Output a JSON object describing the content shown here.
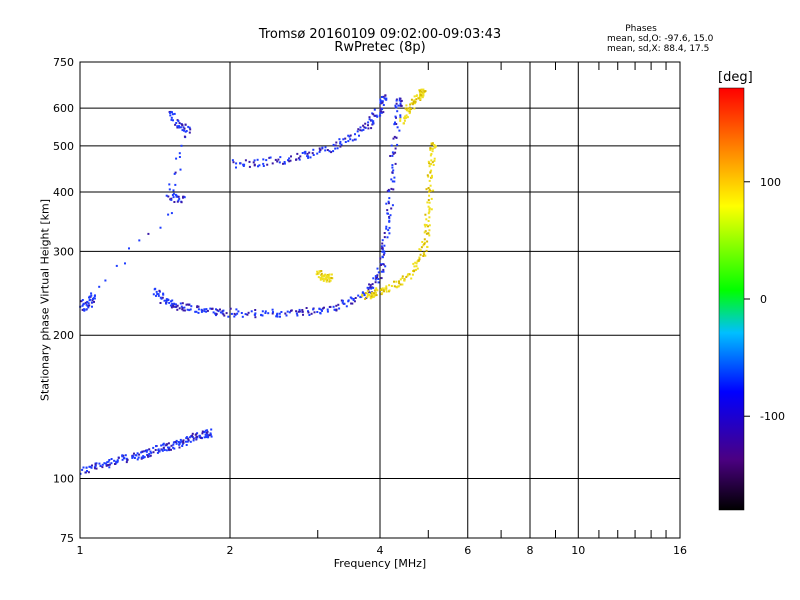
{
  "header": {
    "title_line1": "Tromsø 20160109 09:02:00-09:03:43",
    "title_line2": "RwPretec (8p)"
  },
  "phases": {
    "heading": "Phases",
    "line_o": "mean, sd,O: -97.6, 15.0",
    "line_x": "mean, sd,X:  88.4, 17.5"
  },
  "chart_data": {
    "type": "scatter",
    "xlabel": "Frequency [MHz]",
    "ylabel": "Stationary phase Virtual Height [km]",
    "x_scale": "log",
    "y_scale": "log",
    "xlim": [
      1,
      16
    ],
    "ylim": [
      75,
      750
    ],
    "x_ticks": [
      1,
      2,
      4,
      6,
      8,
      10,
      16
    ],
    "x_minor_ticks": [
      3,
      5,
      7,
      9,
      11,
      12,
      13,
      14,
      15
    ],
    "y_ticks": [
      75,
      100,
      200,
      300,
      400,
      500,
      600,
      750
    ],
    "grid": true,
    "colorbar": {
      "label": "[deg]",
      "range": [
        -180,
        180
      ],
      "ticks": [
        100,
        0,
        -100
      ],
      "colors": [
        "#000000",
        "#4b0082",
        "#0000ff",
        "#00bfff",
        "#00ff00",
        "#ffff00",
        "#ff8000",
        "#ff0000"
      ]
    },
    "colors": {
      "o_trace": "#1e3cff",
      "o_trace_low": "#3a1aa8",
      "x_trace": "#f0e020",
      "x_trace_low": "#d8b800",
      "noise": "#1e3cff"
    },
    "series": [
      {
        "mode": "O",
        "phase_mean": -97.6,
        "segments": [
          {
            "x": [
              1.0,
              1.05,
              1.1,
              1.15,
              1.2,
              1.25,
              1.3,
              1.35,
              1.4,
              1.45,
              1.5,
              1.55,
              1.6,
              1.65,
              1.7,
              1.75,
              1.8
            ],
            "y": [
              104,
              106,
              107,
              109,
              110,
              111,
              112,
              113,
              115,
              116,
              117,
              118,
              120,
              122,
              123,
              124,
              125
            ]
          },
          {
            "x": [
              1.4,
              1.45,
              1.5,
              1.55,
              1.6,
              1.7,
              1.8,
              1.9,
              2.0,
              2.2,
              2.4,
              2.6,
              2.8,
              3.0,
              3.2,
              3.4,
              3.6,
              3.8,
              3.9,
              4.0,
              4.05,
              4.1,
              4.15,
              4.2,
              4.25,
              4.3,
              4.35
            ],
            "y": [
              250,
              240,
              235,
              232,
              230,
              228,
              226,
              225,
              224,
              223,
              223,
              224,
              225,
              227,
              230,
              234,
              240,
              250,
              260,
              275,
              300,
              330,
              370,
              420,
              480,
              550,
              620
            ]
          },
          {
            "x": [
              2.0,
              2.2,
              2.4,
              2.6,
              2.8,
              3.0,
              3.2,
              3.4,
              3.6,
              3.8,
              3.9,
              4.0,
              4.05
            ],
            "y": [
              460,
              462,
              465,
              470,
              478,
              488,
              500,
              515,
              535,
              560,
              580,
              600,
              630
            ]
          },
          {
            "x": [
              1.5,
              1.55,
              1.6,
              1.65,
              1.5,
              1.55,
              1.6,
              1.0,
              1.03,
              1.05
            ],
            "y": [
              600,
              560,
              550,
              545,
              400,
              390,
              385,
              235,
              230,
              240
            ]
          }
        ]
      },
      {
        "mode": "X",
        "phase_mean": 88.4,
        "segments": [
          {
            "x": [
              3.7,
              3.8,
              3.9,
              4.0,
              4.2,
              4.4,
              4.6,
              4.75,
              4.85,
              4.9,
              4.95,
              5.0,
              5.02,
              5.05,
              5.08
            ],
            "y": [
              243,
              245,
              247,
              250,
              255,
              262,
              272,
              285,
              300,
              320,
              345,
              380,
              420,
              460,
              500
            ]
          },
          {
            "x": [
              4.4,
              4.5,
              4.6,
              4.7,
              4.8,
              4.85
            ],
            "y": [
              560,
              590,
              610,
              625,
              640,
              650
            ]
          },
          {
            "x": [
              3.0,
              3.05,
              3.1,
              3.15
            ],
            "y": [
              270,
              268,
              266,
              265
            ]
          }
        ]
      }
    ]
  }
}
